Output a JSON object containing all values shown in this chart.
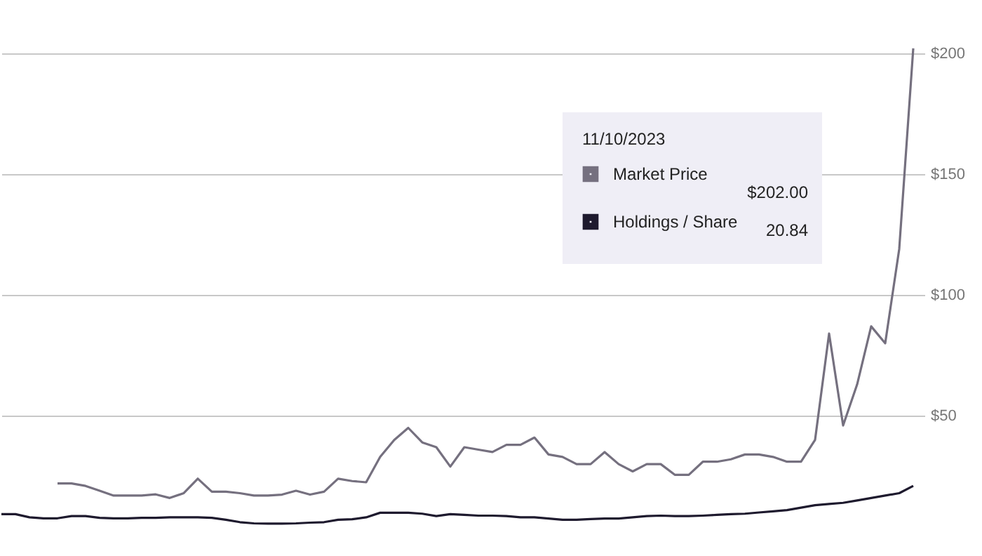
{
  "chart_data": {
    "type": "line",
    "legend_title": "11/10/2023",
    "legend": "top right",
    "grid": "y",
    "categories": [
      null,
      null,
      null,
      null,
      null,
      null,
      null,
      null,
      null,
      null,
      null,
      null,
      null,
      null,
      null,
      null,
      null,
      null,
      null,
      null,
      null,
      null,
      null,
      null,
      null,
      null,
      null,
      null,
      null,
      null,
      null,
      null,
      null,
      null,
      null,
      null,
      null,
      null,
      null,
      null,
      null,
      null,
      null,
      null,
      null,
      null,
      null,
      null,
      null,
      null,
      null,
      null,
      null,
      null,
      null,
      null,
      null,
      null,
      null,
      null,
      null,
      null,
      null,
      null,
      null,
      null
    ],
    "ylim": [
      -8,
      222
    ],
    "yticks": [
      {
        "value": 50,
        "label": "$50"
      },
      {
        "value": 100,
        "label": "$100"
      },
      {
        "value": 150,
        "label": "$150"
      },
      {
        "value": 200,
        "label": "$200"
      }
    ],
    "series": [
      {
        "name": "Market Price",
        "color": "#75707f",
        "values": [
          null,
          null,
          null,
          null,
          22,
          22,
          21,
          19,
          17,
          17,
          17,
          17.5,
          16,
          18,
          24,
          18.6,
          18.6,
          18,
          17,
          17,
          17.4,
          19,
          17.4,
          18.6,
          24,
          23,
          22.5,
          33,
          40,
          45,
          39,
          37,
          29,
          37,
          36,
          35,
          38,
          38,
          41,
          34,
          33,
          30,
          30,
          35,
          30,
          27,
          30,
          30,
          25.6,
          25.6,
          31,
          31,
          32,
          34,
          34,
          33,
          31,
          31,
          40,
          84,
          46,
          63,
          87,
          80,
          119,
          202
        ]
      },
      {
        "name": "Holdings / Share",
        "color": "#1e1a2e",
        "values": [
          9.3,
          9.3,
          8,
          7.6,
          7.6,
          8.5,
          8.5,
          7.8,
          7.6,
          7.6,
          7.8,
          7.8,
          8,
          8,
          8,
          7.8,
          7,
          6,
          5.5,
          5.4,
          5.4,
          5.5,
          5.8,
          6,
          7,
          7.2,
          8,
          9.9,
          9.9,
          9.9,
          9.5,
          8.5,
          9.3,
          9,
          8.7,
          8.7,
          8.5,
          8,
          8,
          7.5,
          7,
          7,
          7.3,
          7.5,
          7.5,
          8,
          8.5,
          8.7,
          8.5,
          8.5,
          8.7,
          9,
          9.3,
          9.5,
          10,
          10.5,
          11,
          12,
          13,
          13.5,
          14,
          15,
          16,
          17,
          18,
          21
        ]
      }
    ],
    "annotations": [
      "$202.00",
      "20.84"
    ]
  }
}
